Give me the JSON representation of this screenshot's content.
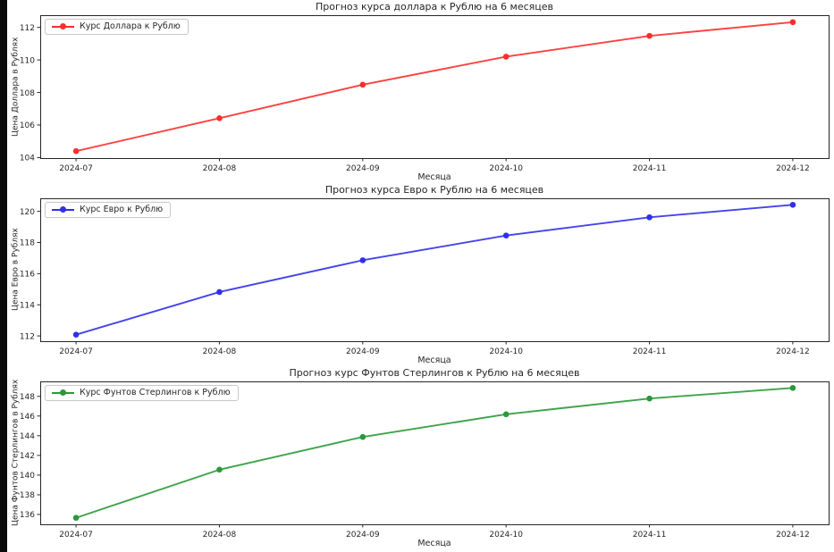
{
  "window": {
    "background": "#0a0a0a",
    "figure_background": "#ffffff"
  },
  "chart_data": [
    {
      "type": "line",
      "title": "Прогноз курса доллара к Рублю на 6 месяцев",
      "xlabel": "Месяца",
      "ylabel": "Цена Доллара в Рублях",
      "legend": "Курс Доллара к Рублю",
      "legend_position": "upper left",
      "grid": false,
      "color": "#fb2d2d",
      "categories": [
        "2024-07",
        "2024-08",
        "2024-09",
        "2024-10",
        "2024-11",
        "2024-12"
      ],
      "values": [
        104.4,
        106.42,
        108.48,
        110.2,
        111.48,
        112.32
      ],
      "yticks": [
        104,
        106,
        108,
        110,
        112
      ],
      "ylim": [
        103.97,
        112.75
      ]
    },
    {
      "type": "line",
      "title": "Прогноз курса Евро к Рублю на 6 месяцев",
      "xlabel": "Месяца",
      "ylabel": "Цена Евро в Рублях",
      "legend": "Курс Евро к Рублю",
      "legend_position": "upper left",
      "grid": false,
      "color": "#3030e8",
      "categories": [
        "2024-07",
        "2024-08",
        "2024-09",
        "2024-10",
        "2024-11",
        "2024-12"
      ],
      "values": [
        112.08,
        114.82,
        116.86,
        118.45,
        119.62,
        120.42
      ],
      "yticks": [
        112,
        114,
        116,
        118,
        120
      ],
      "ylim": [
        111.66,
        120.84
      ]
    },
    {
      "type": "line",
      "title": "Прогноз курс Фунтов Стерлингов к Рублю на 6 месяцев",
      "xlabel": "Месяца",
      "ylabel": "Цена Фунтов Стерлингов в Рублях",
      "legend": "Курс Фунтов Стерлингов к Рублю",
      "legend_position": "upper left",
      "grid": false,
      "color": "#2a9939",
      "categories": [
        "2024-07",
        "2024-08",
        "2024-09",
        "2024-10",
        "2024-11",
        "2024-12"
      ],
      "values": [
        135.66,
        140.55,
        143.88,
        146.18,
        147.78,
        148.86
      ],
      "yticks": [
        136,
        138,
        140,
        142,
        144,
        146,
        148
      ],
      "ylim": [
        135.0,
        149.52
      ]
    }
  ]
}
